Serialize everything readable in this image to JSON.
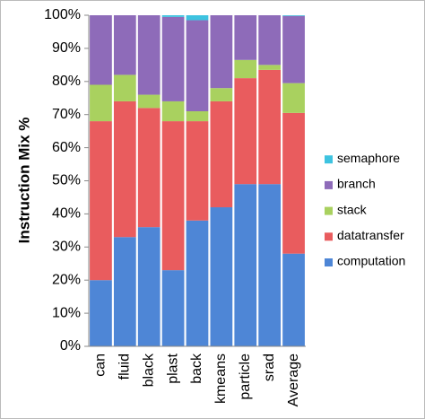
{
  "chart_data": {
    "type": "stacked-bar",
    "y_label": "Instruction Mix %",
    "categories": [
      "can",
      "fluid",
      "black",
      "plast",
      "back",
      "kmeans",
      "particle",
      "srad",
      "Average"
    ],
    "series": [
      {
        "name": "computation",
        "color": "#4e86d6",
        "values": [
          20,
          33,
          36,
          23,
          38,
          42,
          49,
          49,
          28
        ]
      },
      {
        "name": "datatransfer",
        "color": "#e95c5e",
        "values": [
          48,
          41,
          36,
          45,
          30,
          32,
          32,
          34.5,
          42.5
        ]
      },
      {
        "name": "stack",
        "color": "#a9d15f",
        "values": [
          11,
          8,
          4,
          6,
          3,
          4,
          5.5,
          1.5,
          9
        ]
      },
      {
        "name": "branch",
        "color": "#8e6bb9",
        "values": [
          21,
          18,
          24,
          25.5,
          27.5,
          22,
          13.5,
          15,
          20.3
        ]
      },
      {
        "name": "semaphore",
        "color": "#3dc3e0",
        "values": [
          0,
          0,
          0,
          0.5,
          1.5,
          0,
          0,
          0,
          0.2
        ]
      }
    ],
    "ylim": [
      0,
      100
    ],
    "yticks": [
      {
        "value": 0,
        "label": "0%"
      },
      {
        "value": 10,
        "label": "10%"
      },
      {
        "value": 20,
        "label": "20%"
      },
      {
        "value": 30,
        "label": "30%"
      },
      {
        "value": 40,
        "label": "40%"
      },
      {
        "value": 50,
        "label": "50%"
      },
      {
        "value": 60,
        "label": "60%"
      },
      {
        "value": 70,
        "label": "70%"
      },
      {
        "value": 80,
        "label": "80%"
      },
      {
        "value": 90,
        "label": "90%"
      },
      {
        "value": 100,
        "label": "100%"
      }
    ],
    "legend": "right"
  }
}
